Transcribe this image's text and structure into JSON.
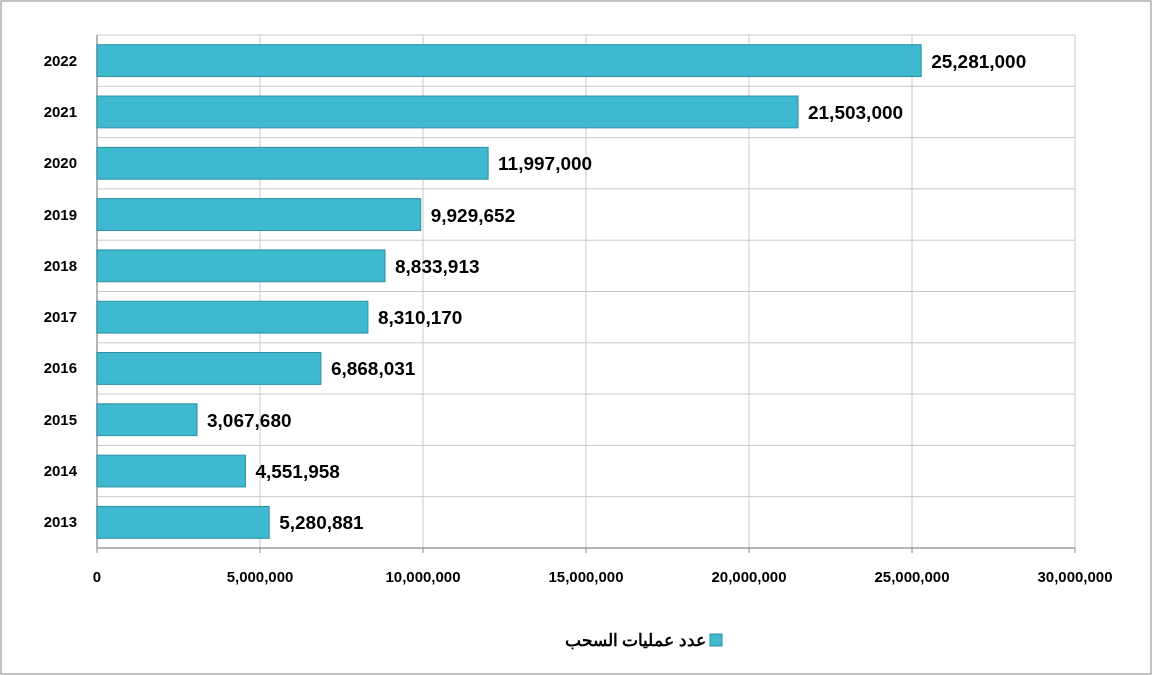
{
  "chart_data": {
    "type": "bar",
    "orientation": "horizontal",
    "categories": [
      "2022",
      "2021",
      "2020",
      "2019",
      "2018",
      "2017",
      "2016",
      "2015",
      "2014",
      "2013"
    ],
    "series": [
      {
        "name": "عدد عمليات السحب",
        "color": "#3fb9cf",
        "values": [
          25281000,
          21503000,
          11997000,
          9929652,
          8833913,
          8310170,
          6868031,
          3067680,
          4551958,
          5280881
        ],
        "value_labels": [
          "25,281,000",
          "21,503,000",
          "11,997,000",
          "9,929,652",
          "8,833,913",
          "8,310,170",
          "6,868,031",
          "3,067,680",
          "4,551,958",
          "5,280,881"
        ]
      }
    ],
    "xlim": [
      0,
      30000000
    ],
    "xticks": [
      {
        "value": 0,
        "label": "0"
      },
      {
        "value": 5000000,
        "label": "5,000,000"
      },
      {
        "value": 10000000,
        "label": "10,000,000"
      },
      {
        "value": 15000000,
        "label": "15,000,000"
      },
      {
        "value": 20000000,
        "label": "20,000,000"
      },
      {
        "value": 25000000,
        "label": "25,000,000"
      },
      {
        "value": 30000000,
        "label": "30,000,000"
      }
    ],
    "grid": true,
    "legend": "bottom"
  }
}
